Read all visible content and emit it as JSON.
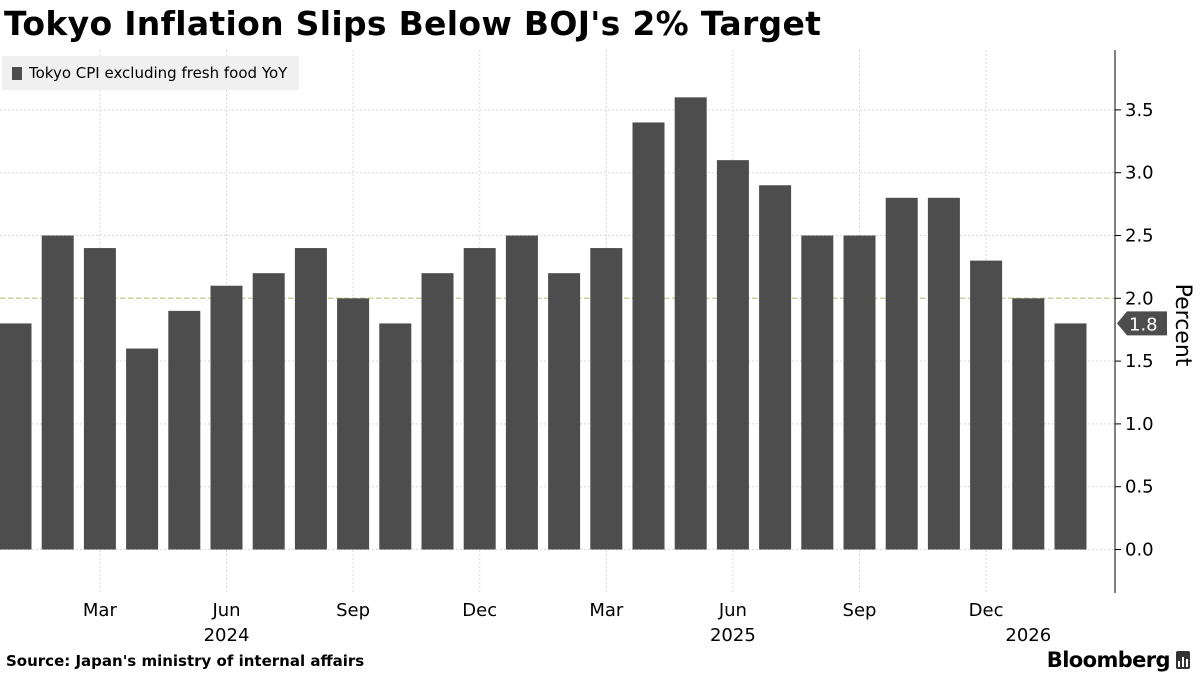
{
  "title": "Tokyo Inflation Slips Below BOJ's 2% Target",
  "source": "Source: Japan's ministry of internal affairs",
  "logo_text": "Bloomberg",
  "colors": {
    "bar": "#4d4d4d",
    "target_line": "#c8d89a",
    "grid": "#d9d9d9",
    "axis": "#000000"
  },
  "chart_data": {
    "type": "bar",
    "legend": "Tokyo CPI excluding fresh food YoY",
    "legend_position": "top-left",
    "ylabel": "Percent",
    "y_axis_position": "right",
    "ylim": [
      -0.35,
      3.95
    ],
    "yticks": [
      "0.0",
      "0.5",
      "1.0",
      "1.5",
      "2.0",
      "2.5",
      "3.0",
      "3.5"
    ],
    "grid": true,
    "reference_line": 2.0,
    "last_value_label": "1.8",
    "categories": [
      "2024-01",
      "2024-02",
      "2024-03",
      "2024-04",
      "2024-05",
      "2024-06",
      "2024-07",
      "2024-08",
      "2024-09",
      "2024-10",
      "2024-11",
      "2024-12",
      "2025-01",
      "2025-02",
      "2025-03",
      "2025-04",
      "2025-05",
      "2025-06",
      "2025-07",
      "2025-08",
      "2025-09",
      "2025-10",
      "2025-11",
      "2025-12",
      "2026-01",
      "2026-02"
    ],
    "values": [
      1.8,
      2.5,
      2.4,
      1.6,
      1.9,
      2.1,
      2.2,
      2.4,
      2.0,
      1.8,
      2.2,
      2.4,
      2.5,
      2.2,
      2.4,
      3.4,
      3.6,
      3.1,
      2.9,
      2.5,
      2.5,
      2.8,
      2.8,
      2.3,
      2.0,
      1.8
    ],
    "x_ticks": [
      {
        "index": 2,
        "label": "Mar"
      },
      {
        "index": 5,
        "label": "Jun"
      },
      {
        "index": 8,
        "label": "Sep"
      },
      {
        "index": 11,
        "label": "Dec"
      },
      {
        "index": 14,
        "label": "Mar"
      },
      {
        "index": 17,
        "label": "Jun"
      },
      {
        "index": 20,
        "label": "Sep"
      },
      {
        "index": 23,
        "label": "Dec"
      }
    ],
    "year_labels": [
      {
        "index": 5,
        "label": "2024"
      },
      {
        "index": 17,
        "label": "2025"
      },
      {
        "index": 24,
        "label": "2026"
      }
    ]
  }
}
